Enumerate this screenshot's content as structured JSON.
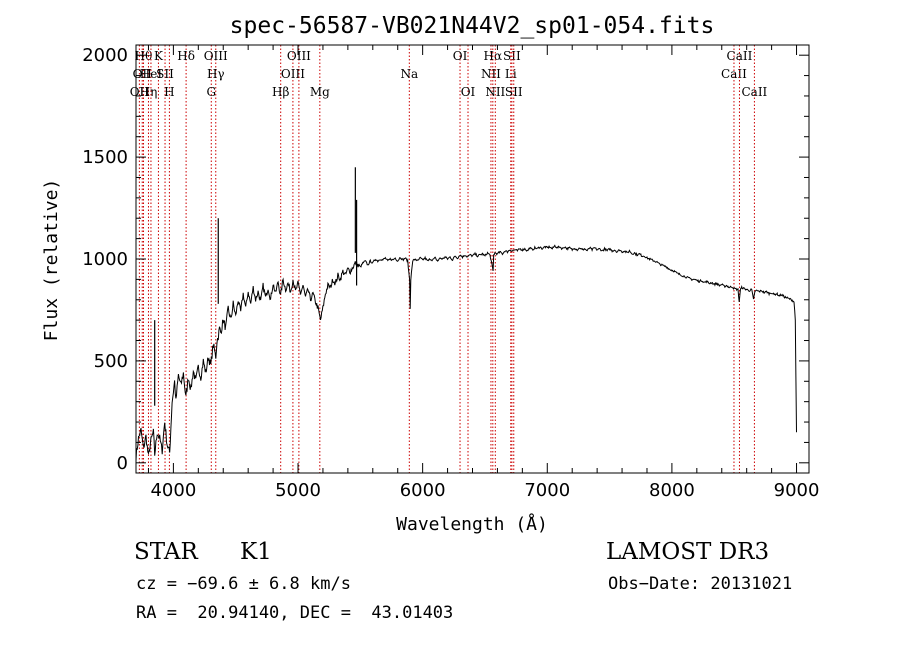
{
  "chart_data": {
    "type": "line",
    "title": "spec-56587-VB021N44V2_sp01-054.fits",
    "xlabel": "Wavelength (Å)",
    "ylabel": "Flux (relative)",
    "xlim": [
      3700,
      9100
    ],
    "ylim": [
      -50,
      2050
    ],
    "xticks": [
      4000,
      5000,
      6000,
      7000,
      8000,
      9000
    ],
    "yticks": [
      0,
      500,
      1000,
      1500,
      2000
    ],
    "grid": false,
    "spectrum_points": [
      [
        3700,
        30
      ],
      [
        3720,
        120
      ],
      [
        3740,
        160
      ],
      [
        3760,
        70
      ],
      [
        3780,
        130
      ],
      [
        3800,
        30
      ],
      [
        3820,
        110
      ],
      [
        3840,
        150
      ],
      [
        3850,
        40
      ],
      [
        3870,
        150
      ],
      [
        3890,
        120
      ],
      [
        3910,
        60
      ],
      [
        3930,
        200
      ],
      [
        3950,
        90
      ],
      [
        3970,
        50
      ],
      [
        3990,
        300
      ],
      [
        4000,
        350
      ],
      [
        4010,
        400
      ],
      [
        4020,
        300
      ],
      [
        4040,
        430
      ],
      [
        4060,
        380
      ],
      [
        4080,
        440
      ],
      [
        4100,
        320
      ],
      [
        4120,
        420
      ],
      [
        4140,
        360
      ],
      [
        4160,
        450
      ],
      [
        4180,
        400
      ],
      [
        4200,
        470
      ],
      [
        4220,
        420
      ],
      [
        4240,
        500
      ],
      [
        4260,
        440
      ],
      [
        4280,
        520
      ],
      [
        4300,
        480
      ],
      [
        4320,
        580
      ],
      [
        4340,
        520
      ],
      [
        4350,
        600
      ],
      [
        4360,
        620
      ],
      [
        4370,
        660
      ],
      [
        4380,
        640
      ],
      [
        4400,
        700
      ],
      [
        4420,
        660
      ],
      [
        4440,
        760
      ],
      [
        4460,
        700
      ],
      [
        4480,
        780
      ],
      [
        4500,
        720
      ],
      [
        4520,
        800
      ],
      [
        4540,
        740
      ],
      [
        4560,
        830
      ],
      [
        4580,
        760
      ],
      [
        4600,
        840
      ],
      [
        4620,
        780
      ],
      [
        4640,
        860
      ],
      [
        4660,
        800
      ],
      [
        4680,
        840
      ],
      [
        4700,
        790
      ],
      [
        4720,
        870
      ],
      [
        4740,
        810
      ],
      [
        4760,
        860
      ],
      [
        4780,
        800
      ],
      [
        4800,
        880
      ],
      [
        4820,
        830
      ],
      [
        4840,
        890
      ],
      [
        4860,
        820
      ],
      [
        4880,
        900
      ],
      [
        4900,
        850
      ],
      [
        4920,
        880
      ],
      [
        4940,
        840
      ],
      [
        4960,
        900
      ],
      [
        4980,
        840
      ],
      [
        5000,
        880
      ],
      [
        5020,
        830
      ],
      [
        5040,
        870
      ],
      [
        5060,
        810
      ],
      [
        5080,
        850
      ],
      [
        5100,
        800
      ],
      [
        5120,
        830
      ],
      [
        5140,
        790
      ],
      [
        5160,
        760
      ],
      [
        5180,
        700
      ],
      [
        5200,
        760
      ],
      [
        5220,
        830
      ],
      [
        5240,
        870
      ],
      [
        5260,
        860
      ],
      [
        5280,
        900
      ],
      [
        5300,
        880
      ],
      [
        5320,
        920
      ],
      [
        5340,
        900
      ],
      [
        5360,
        940
      ],
      [
        5380,
        920
      ],
      [
        5400,
        950
      ],
      [
        5420,
        940
      ],
      [
        5440,
        960
      ],
      [
        5460,
        980
      ],
      [
        5480,
        970
      ],
      [
        5500,
        960
      ],
      [
        5520,
        980
      ],
      [
        5540,
        990
      ],
      [
        5560,
        970
      ],
      [
        5580,
        990
      ],
      [
        5600,
        980
      ],
      [
        5620,
        1000
      ],
      [
        5640,
        990
      ],
      [
        5660,
        1000
      ],
      [
        5680,
        995
      ],
      [
        5700,
        1005
      ],
      [
        5720,
        990
      ],
      [
        5740,
        1000
      ],
      [
        5760,
        995
      ],
      [
        5780,
        1005
      ],
      [
        5800,
        990
      ],
      [
        5820,
        1010
      ],
      [
        5840,
        995
      ],
      [
        5860,
        1005
      ],
      [
        5880,
        990
      ],
      [
        5895,
        900
      ],
      [
        5900,
        760
      ],
      [
        5905,
        900
      ],
      [
        5920,
        990
      ],
      [
        5940,
        1000
      ],
      [
        5960,
        990
      ],
      [
        5980,
        1005
      ],
      [
        6000,
        995
      ],
      [
        6020,
        1005
      ],
      [
        6040,
        990
      ],
      [
        6060,
        1000
      ],
      [
        6080,
        995
      ],
      [
        6100,
        1005
      ],
      [
        6120,
        990
      ],
      [
        6140,
        1005
      ],
      [
        6160,
        1000
      ],
      [
        6180,
        1010
      ],
      [
        6200,
        1000
      ],
      [
        6220,
        1010
      ],
      [
        6240,
        995
      ],
      [
        6260,
        1015
      ],
      [
        6280,
        1005
      ],
      [
        6300,
        1020
      ],
      [
        6320,
        1010
      ],
      [
        6340,
        1020
      ],
      [
        6360,
        1010
      ],
      [
        6380,
        1020
      ],
      [
        6400,
        1015
      ],
      [
        6420,
        1025
      ],
      [
        6440,
        1015
      ],
      [
        6460,
        1020
      ],
      [
        6480,
        1025
      ],
      [
        6500,
        1015
      ],
      [
        6520,
        1030
      ],
      [
        6540,
        1020
      ],
      [
        6560,
        960
      ],
      [
        6565,
        940
      ],
      [
        6570,
        1020
      ],
      [
        6580,
        1030
      ],
      [
        6600,
        1025
      ],
      [
        6620,
        1035
      ],
      [
        6640,
        1025
      ],
      [
        6660,
        1040
      ],
      [
        6680,
        1035
      ],
      [
        6700,
        1045
      ],
      [
        6720,
        1040
      ],
      [
        6740,
        1045
      ],
      [
        6760,
        1040
      ],
      [
        6780,
        1050
      ],
      [
        6800,
        1045
      ],
      [
        6820,
        1050
      ],
      [
        6840,
        1040
      ],
      [
        6860,
        1055
      ],
      [
        6880,
        1045
      ],
      [
        6900,
        1055
      ],
      [
        6920,
        1050
      ],
      [
        6940,
        1060
      ],
      [
        6960,
        1050
      ],
      [
        6980,
        1060
      ],
      [
        7000,
        1055
      ],
      [
        7020,
        1060
      ],
      [
        7040,
        1050
      ],
      [
        7060,
        1065
      ],
      [
        7080,
        1055
      ],
      [
        7100,
        1060
      ],
      [
        7120,
        1050
      ],
      [
        7140,
        1060
      ],
      [
        7160,
        1050
      ],
      [
        7180,
        1055
      ],
      [
        7200,
        1045
      ],
      [
        7220,
        1055
      ],
      [
        7240,
        1045
      ],
      [
        7260,
        1055
      ],
      [
        7280,
        1045
      ],
      [
        7300,
        1050
      ],
      [
        7320,
        1040
      ],
      [
        7340,
        1055
      ],
      [
        7360,
        1045
      ],
      [
        7380,
        1055
      ],
      [
        7400,
        1045
      ],
      [
        7420,
        1050
      ],
      [
        7440,
        1040
      ],
      [
        7460,
        1050
      ],
      [
        7480,
        1040
      ],
      [
        7500,
        1050
      ],
      [
        7520,
        1040
      ],
      [
        7540,
        1045
      ],
      [
        7560,
        1035
      ],
      [
        7580,
        1045
      ],
      [
        7600,
        1035
      ],
      [
        7620,
        1040
      ],
      [
        7640,
        1030
      ],
      [
        7660,
        1040
      ],
      [
        7680,
        1025
      ],
      [
        7700,
        1030
      ],
      [
        7720,
        1020
      ],
      [
        7740,
        1025
      ],
      [
        7760,
        1015
      ],
      [
        7780,
        1015
      ],
      [
        7800,
        1005
      ],
      [
        7820,
        1000
      ],
      [
        7840,
        995
      ],
      [
        7860,
        990
      ],
      [
        7880,
        985
      ],
      [
        7900,
        975
      ],
      [
        7920,
        970
      ],
      [
        7940,
        965
      ],
      [
        7960,
        960
      ],
      [
        7980,
        950
      ],
      [
        8000,
        945
      ],
      [
        8020,
        940
      ],
      [
        8040,
        930
      ],
      [
        8060,
        925
      ],
      [
        8080,
        920
      ],
      [
        8100,
        915
      ],
      [
        8120,
        910
      ],
      [
        8140,
        905
      ],
      [
        8160,
        900
      ],
      [
        8180,
        900
      ],
      [
        8200,
        895
      ],
      [
        8220,
        890
      ],
      [
        8240,
        895
      ],
      [
        8260,
        885
      ],
      [
        8280,
        890
      ],
      [
        8300,
        880
      ],
      [
        8320,
        885
      ],
      [
        8340,
        875
      ],
      [
        8360,
        880
      ],
      [
        8380,
        870
      ],
      [
        8400,
        875
      ],
      [
        8420,
        865
      ],
      [
        8440,
        870
      ],
      [
        8460,
        860
      ],
      [
        8480,
        865
      ],
      [
        8500,
        855
      ],
      [
        8530,
        850
      ],
      [
        8540,
        790
      ],
      [
        8550,
        850
      ],
      [
        8560,
        860
      ],
      [
        8580,
        855
      ],
      [
        8600,
        850
      ],
      [
        8620,
        845
      ],
      [
        8640,
        850
      ],
      [
        8655,
        800
      ],
      [
        8665,
        840
      ],
      [
        8680,
        845
      ],
      [
        8700,
        840
      ],
      [
        8720,
        845
      ],
      [
        8740,
        835
      ],
      [
        8760,
        840
      ],
      [
        8780,
        830
      ],
      [
        8800,
        835
      ],
      [
        8820,
        825
      ],
      [
        8840,
        830
      ],
      [
        8860,
        820
      ],
      [
        8880,
        825
      ],
      [
        8900,
        815
      ],
      [
        8920,
        810
      ],
      [
        8940,
        805
      ],
      [
        8960,
        800
      ],
      [
        8980,
        790
      ],
      [
        8990,
        700
      ],
      [
        9000,
        150
      ]
    ],
    "spikes": [
      {
        "x": 4360,
        "y": 1200
      },
      {
        "x": 3850,
        "y": 700
      },
      {
        "x": 5460,
        "y": 1450
      },
      {
        "x": 5470,
        "y": 1290
      }
    ],
    "lines": [
      {
        "x": 3727,
        "rows": [
          {
            "label": "OII",
            "row": 2
          }
        ]
      },
      {
        "x": 3750,
        "rows": [
          {
            "label": "OII",
            "row": 1
          }
        ]
      },
      {
        "x": 3760,
        "rows": [
          {
            "label": "Hθ",
            "row": 0
          }
        ]
      },
      {
        "x": 3800,
        "rows": [
          {
            "label": "Hη",
            "row": 2
          }
        ]
      },
      {
        "x": 3820,
        "rows": [
          {
            "label": "HeI",
            "row": 1
          }
        ]
      },
      {
        "x": 3880,
        "rows": [
          {
            "label": "K",
            "row": 0
          }
        ]
      },
      {
        "x": 3933,
        "rows": [
          {
            "label": "SII",
            "row": 1
          }
        ]
      },
      {
        "x": 3968,
        "rows": [
          {
            "label": "H",
            "row": 2
          }
        ]
      },
      {
        "x": 4102,
        "rows": [
          {
            "label": "Hδ",
            "row": 0
          }
        ]
      },
      {
        "x": 4304,
        "rows": [
          {
            "label": "G",
            "row": 2
          }
        ]
      },
      {
        "x": 4340,
        "rows": [
          {
            "label": "OIII",
            "row": 0
          },
          {
            "label": "Hγ",
            "row": 1
          }
        ]
      },
      {
        "x": 4861,
        "rows": [
          {
            "label": "Hβ",
            "row": 2
          }
        ]
      },
      {
        "x": 4959,
        "rows": [
          {
            "label": "OIII",
            "row": 1
          }
        ]
      },
      {
        "x": 5007,
        "rows": [
          {
            "label": "OIII",
            "row": 0
          }
        ]
      },
      {
        "x": 5175,
        "rows": [
          {
            "label": "Mg",
            "row": 2
          }
        ]
      },
      {
        "x": 5893,
        "rows": [
          {
            "label": "Na",
            "row": 1
          }
        ]
      },
      {
        "x": 6300,
        "rows": [
          {
            "label": "OI",
            "row": 0
          }
        ]
      },
      {
        "x": 6364,
        "rows": [
          {
            "label": "OI",
            "row": 2
          }
        ]
      },
      {
        "x": 6548,
        "rows": [
          {
            "label": "NII",
            "row": 1
          }
        ]
      },
      {
        "x": 6563,
        "rows": [
          {
            "label": "Hα",
            "row": 0
          }
        ]
      },
      {
        "x": 6583,
        "rows": [
          {
            "label": "NII",
            "row": 2
          }
        ]
      },
      {
        "x": 6707,
        "rows": [
          {
            "label": "Li",
            "row": 1
          }
        ]
      },
      {
        "x": 6716,
        "rows": [
          {
            "label": "SII",
            "row": 0
          }
        ]
      },
      {
        "x": 6731,
        "rows": [
          {
            "label": "SII",
            "row": 2
          }
        ]
      },
      {
        "x": 8498,
        "rows": [
          {
            "label": "CaII",
            "row": 1
          }
        ]
      },
      {
        "x": 8542,
        "rows": [
          {
            "label": "CaII",
            "row": 0
          }
        ]
      },
      {
        "x": 8662,
        "rows": [
          {
            "label": "CaII",
            "row": 2
          }
        ]
      }
    ]
  },
  "footer": {
    "class_label": "STAR",
    "subclass": "K1",
    "cz": "cz = −69.6 ± 6.8 km/s",
    "coords": "RA =  20.94140, DEC =  43.01403",
    "survey": "LAMOST DR3",
    "obs_date": "Obs−Date: 20131021"
  }
}
